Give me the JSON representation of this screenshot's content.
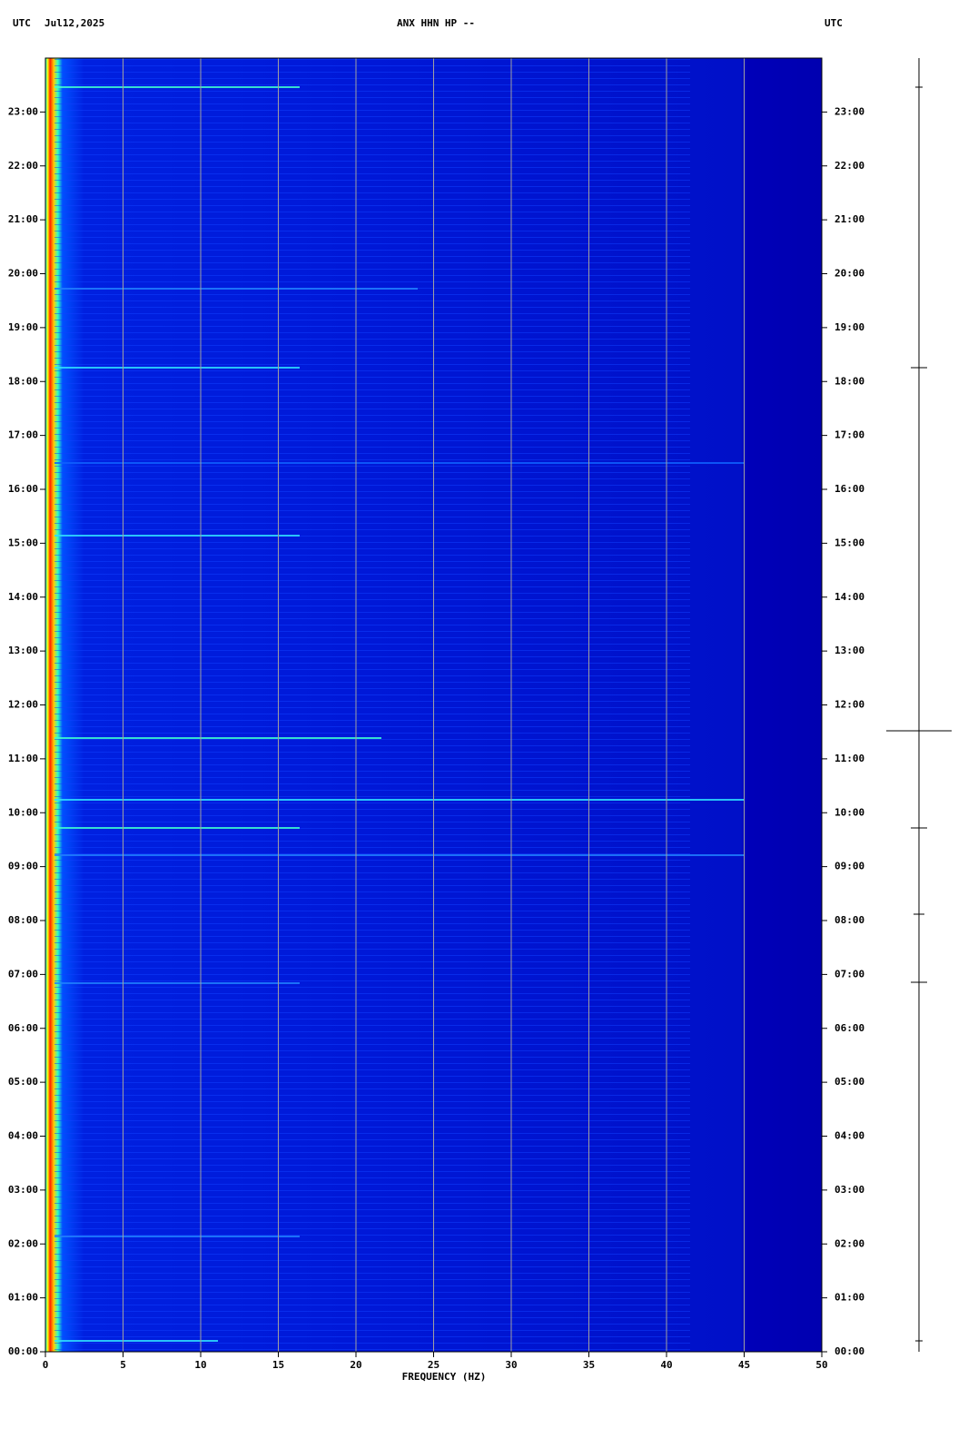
{
  "chart_data": {
    "type": "spectrogram",
    "time_zone_left": "UTC",
    "date": "Jul12,2025",
    "title": "ANX HHN HP --",
    "time_zone_right": "UTC",
    "xlabel": "FREQUENCY (HZ)",
    "xlim": [
      0,
      50
    ],
    "xticks": [
      0,
      5,
      10,
      15,
      20,
      25,
      30,
      35,
      40,
      45,
      50
    ],
    "ylim": [
      0,
      24
    ],
    "yticks": [
      {
        "value": 0,
        "label": "00:00"
      },
      {
        "value": 1,
        "label": "01:00"
      },
      {
        "value": 2,
        "label": "02:00"
      },
      {
        "value": 3,
        "label": "03:00"
      },
      {
        "value": 4,
        "label": "04:00"
      },
      {
        "value": 5,
        "label": "05:00"
      },
      {
        "value": 6,
        "label": "06:00"
      },
      {
        "value": 7,
        "label": "07:00"
      },
      {
        "value": 8,
        "label": "08:00"
      },
      {
        "value": 9,
        "label": "09:00"
      },
      {
        "value": 10,
        "label": "10:00"
      },
      {
        "value": 11,
        "label": "11:00"
      },
      {
        "value": 12,
        "label": "12:00"
      },
      {
        "value": 13,
        "label": "13:00"
      },
      {
        "value": 14,
        "label": "14:00"
      },
      {
        "value": 15,
        "label": "15:00"
      },
      {
        "value": 16,
        "label": "16:00"
      },
      {
        "value": 17,
        "label": "17:00"
      },
      {
        "value": 18,
        "label": "18:00"
      },
      {
        "value": 19,
        "label": "19:00"
      },
      {
        "value": 20,
        "label": "20:00"
      },
      {
        "value": 21,
        "label": "21:00"
      },
      {
        "value": 22,
        "label": "22:00"
      },
      {
        "value": 23,
        "label": "23:00"
      }
    ],
    "grid": true,
    "grid_color": "#a0a0a0"
  }
}
